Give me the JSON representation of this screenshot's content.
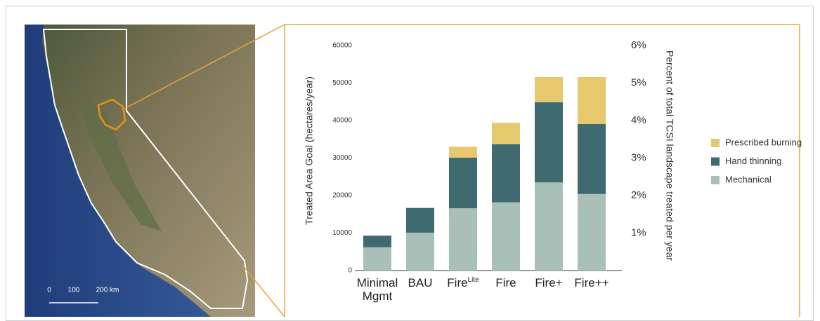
{
  "chart_data": {
    "type": "stacked-bar",
    "y_label": "Treated Area Goal (hectares/year)",
    "y2_label": "Percent of total TCSI landscape treated per year",
    "categories": [
      "Minimal Mgmt",
      "BAU",
      "Fire",
      "Fire",
      "Fire+",
      "Fire++"
    ],
    "category_superscripts": [
      null,
      null,
      "Lite",
      null,
      null,
      null
    ],
    "series": [
      {
        "name": "Mechanical",
        "color": "#a9c0b8",
        "values": [
          6200,
          10100,
          16600,
          18200,
          23500,
          20400
        ]
      },
      {
        "name": "Hand thinning",
        "color": "#3f6b70",
        "values": [
          3100,
          6600,
          13500,
          15500,
          21400,
          18700
        ]
      },
      {
        "name": "Prescribed burning",
        "color": "#e6c96e",
        "values": [
          null,
          null,
          2900,
          5700,
          6700,
          12500
        ]
      }
    ],
    "ylim": [
      0,
      60000
    ],
    "yticks": [
      0,
      10000,
      20000,
      30000,
      40000,
      50000,
      60000
    ],
    "y2lim": [
      0,
      6
    ],
    "y2ticks": [
      {
        "value": 1,
        "label": "1%"
      },
      {
        "value": 2,
        "label": "2%"
      },
      {
        "value": 3,
        "label": "3%"
      },
      {
        "value": 4,
        "label": "4%"
      },
      {
        "value": 5,
        "label": "5%"
      },
      {
        "value": 6,
        "label": "6%"
      }
    ],
    "legend": "right"
  },
  "map": {
    "scale_labels": [
      "0",
      "100",
      "200 km"
    ]
  }
}
